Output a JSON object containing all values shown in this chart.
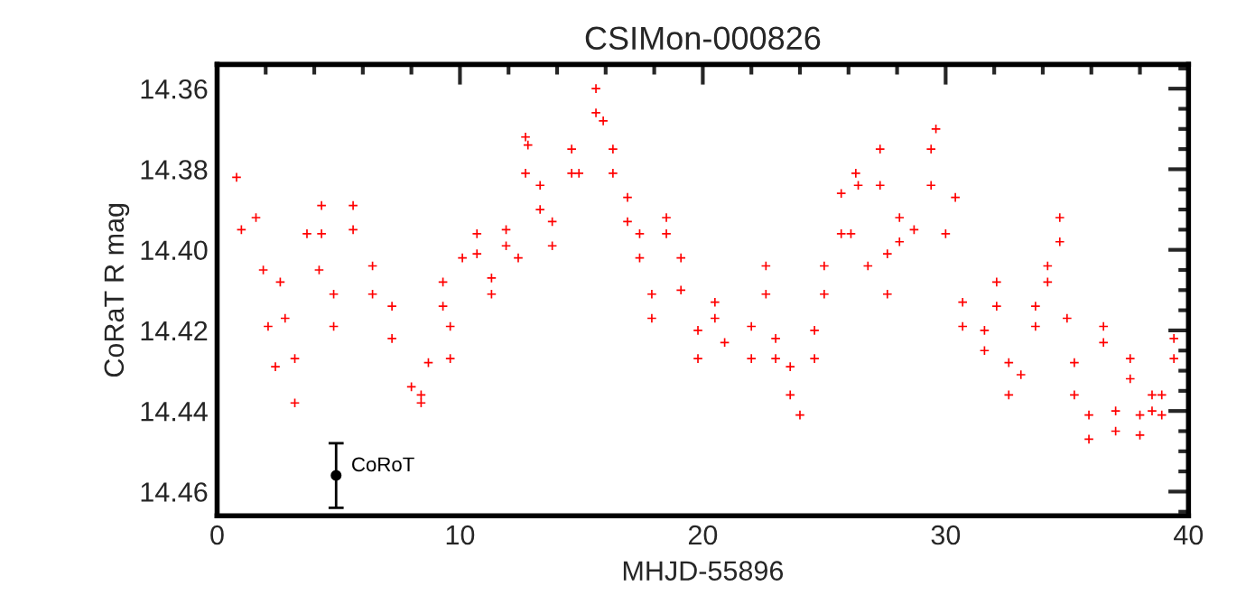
{
  "chart_data": {
    "type": "scatter",
    "title": "CSIMon-000826",
    "xlabel": "MHJD-55896",
    "ylabel": "CoRaT R mag",
    "xlim": [
      0,
      40
    ],
    "xticks": [
      0,
      10,
      20,
      30,
      40
    ],
    "ylim": [
      14.466,
      14.354
    ],
    "yticks": [
      14.36,
      14.38,
      {
        "value": 14.4,
        "label": "14.40"
      },
      14.42,
      14.44,
      14.46
    ],
    "grid": false,
    "legend": false,
    "marker": "cross",
    "series": [
      {
        "color": "#ff0000",
        "x": [
          0.8,
          1.0,
          1.6,
          1.9,
          2.1,
          2.4,
          2.6,
          2.8,
          3.2,
          3.2,
          3.7,
          4.2,
          4.3,
          4.3,
          4.8,
          4.8,
          5.6,
          5.6,
          6.4,
          6.4,
          7.2,
          7.2,
          8.0,
          8.4,
          8.4,
          8.7,
          9.3,
          9.3,
          9.6,
          9.6,
          10.1,
          10.7,
          10.7,
          11.3,
          11.3,
          11.9,
          11.9,
          12.4,
          12.7,
          12.7,
          12.8,
          13.3,
          13.3,
          13.8,
          13.8,
          14.6,
          14.6,
          14.9,
          15.6,
          15.6,
          15.9,
          16.3,
          16.3,
          16.9,
          16.9,
          17.4,
          17.4,
          17.9,
          17.9,
          18.5,
          18.5,
          19.1,
          19.1,
          19.8,
          19.8,
          20.5,
          20.5,
          20.9,
          22.0,
          22.0,
          22.6,
          22.6,
          23.0,
          23.0,
          23.6,
          23.6,
          24.0,
          24.6,
          24.6,
          25.0,
          25.0,
          25.7,
          25.7,
          26.1,
          26.3,
          26.4,
          26.8,
          27.3,
          27.3,
          27.6,
          27.6,
          28.1,
          28.1,
          28.7,
          29.4,
          29.4,
          29.6,
          30.0,
          30.4,
          30.7,
          30.7,
          31.6,
          31.6,
          32.1,
          32.1,
          32.6,
          32.6,
          33.1,
          33.7,
          33.7,
          34.2,
          34.2,
          34.7,
          34.7,
          35.0,
          35.3,
          35.3,
          35.9,
          35.9,
          36.5,
          36.5,
          37.0,
          37.0,
          37.6,
          37.6,
          38.0,
          38.0,
          38.5,
          38.5,
          38.9,
          38.9,
          39.4,
          39.4
        ],
        "values": [
          14.382,
          14.395,
          14.392,
          14.405,
          14.419,
          14.429,
          14.408,
          14.417,
          14.427,
          14.438,
          14.396,
          14.405,
          14.389,
          14.396,
          14.411,
          14.419,
          14.389,
          14.395,
          14.404,
          14.411,
          14.414,
          14.422,
          14.434,
          14.436,
          14.438,
          14.428,
          14.408,
          14.414,
          14.419,
          14.427,
          14.402,
          14.396,
          14.401,
          14.407,
          14.411,
          14.395,
          14.399,
          14.402,
          14.372,
          14.381,
          14.374,
          14.384,
          14.39,
          14.393,
          14.399,
          14.375,
          14.381,
          14.381,
          14.36,
          14.366,
          14.368,
          14.375,
          14.381,
          14.387,
          14.393,
          14.396,
          14.402,
          14.411,
          14.417,
          14.392,
          14.396,
          14.402,
          14.41,
          14.42,
          14.427,
          14.413,
          14.417,
          14.423,
          14.419,
          14.427,
          14.404,
          14.411,
          14.422,
          14.427,
          14.429,
          14.436,
          14.441,
          14.42,
          14.427,
          14.404,
          14.411,
          14.386,
          14.396,
          14.396,
          14.381,
          14.384,
          14.404,
          14.375,
          14.384,
          14.401,
          14.411,
          14.392,
          14.398,
          14.395,
          14.375,
          14.384,
          14.37,
          14.396,
          14.387,
          14.413,
          14.419,
          14.42,
          14.425,
          14.408,
          14.414,
          14.428,
          14.436,
          14.431,
          14.414,
          14.419,
          14.404,
          14.408,
          14.392,
          14.398,
          14.417,
          14.428,
          14.436,
          14.441,
          14.447,
          14.419,
          14.423,
          14.44,
          14.445,
          14.427,
          14.432,
          14.441,
          14.446,
          14.436,
          14.44,
          14.436,
          14.441,
          14.422,
          14.427
        ]
      },
      {
        "name": "CoRoT",
        "color": "#000000",
        "marker": "circle",
        "x": [
          4.9
        ],
        "values": [
          14.456
        ],
        "errors": [
          0.008
        ]
      }
    ]
  }
}
